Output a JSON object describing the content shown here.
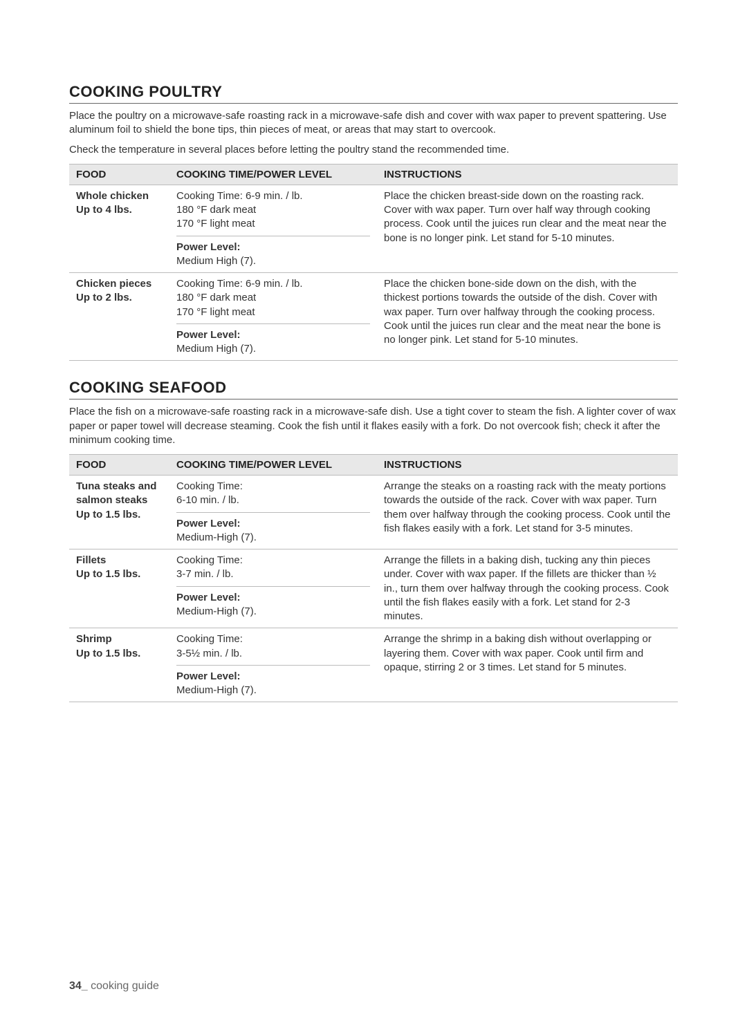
{
  "page": {
    "number": "34_",
    "label": "cooking guide"
  },
  "sections": [
    {
      "heading": "COOKING POULTRY",
      "intro_lines": [
        "Place the poultry on a microwave-safe roasting rack in a microwave-safe dish and cover with wax paper to prevent spattering. Use aluminum foil to shield the bone tips, thin pieces of meat, or areas that may start to overcook.",
        "Check the temperature in several places before letting the poultry stand the recommended time."
      ],
      "columns": [
        "FOOD",
        "COOKING TIME/POWER LEVEL",
        "INSTRUCTIONS"
      ],
      "rows": [
        {
          "food_lines": [
            "Whole chicken",
            "Up to 4 lbs."
          ],
          "time_block": "Cooking Time: 6-9 min. / lb.\n180 °F dark meat\n170 °F light meat",
          "power_label": "Power Level:",
          "power_value": "Medium High (7).",
          "instructions": "Place the chicken breast-side down on the roasting rack. Cover with wax paper. Turn over half way through cooking process. Cook until the juices run clear and the meat near the bone is no longer pink. Let stand for 5-10 minutes."
        },
        {
          "food_lines": [
            "Chicken pieces",
            "Up to 2 lbs."
          ],
          "time_block": "Cooking Time: 6-9 min. / lb.\n180 °F dark meat\n170 °F light meat",
          "power_label": "Power Level:",
          "power_value": "Medium High (7).",
          "instructions": "Place the chicken bone-side down on the dish, with the thickest portions towards the outside of the dish. Cover with wax paper. Turn over halfway through the cooking process. Cook until the juices run clear and the meat near the bone is no longer pink. Let stand for 5-10 minutes."
        }
      ]
    },
    {
      "heading": "COOKING SEAFOOD",
      "intro_lines": [
        "Place the fish on a microwave-safe roasting rack in a microwave-safe dish. Use a tight cover to steam the fish. A lighter cover of wax paper or paper towel will decrease steaming. Cook the fish until it flakes easily with a fork. Do not overcook fish; check it after the minimum cooking time."
      ],
      "columns": [
        "FOOD",
        "COOKING TIME/POWER LEVEL",
        "INSTRUCTIONS"
      ],
      "rows": [
        {
          "food_lines": [
            "Tuna steaks and",
            "salmon steaks",
            "Up to 1.5 lbs."
          ],
          "time_block": "Cooking Time:\n6-10 min. / lb.",
          "power_label": "Power Level:",
          "power_value": "Medium-High (7).",
          "instructions": "Arrange the steaks on a roasting rack with the meaty portions towards the outside of the rack. Cover with wax paper. Turn them over halfway through the cooking process. Cook until the fish flakes easily with a fork. Let stand for 3-5 minutes."
        },
        {
          "food_lines": [
            "Fillets",
            "Up to 1.5 lbs."
          ],
          "time_block": "Cooking Time:\n3-7 min. / lb.",
          "power_label": "Power Level:",
          "power_value": "Medium-High (7).",
          "instructions": "Arrange the fillets in a baking dish, tucking any thin pieces under. Cover with wax paper. If the fillets are thicker than ½ in., turn them over halfway through the cooking process. Cook until the fish flakes easily with a fork. Let stand for 2-3 minutes."
        },
        {
          "food_lines": [
            "Shrimp",
            "Up to 1.5 lbs."
          ],
          "time_block": "Cooking Time:\n3-5½ min. / lb.",
          "power_label": "Power Level:",
          "power_value": "Medium-High (7).",
          "instructions": "Arrange the shrimp in a baking dish without overlapping or layering them. Cover with wax paper. Cook until firm and opaque, stirring 2 or 3 times. Let stand for 5 minutes."
        }
      ]
    }
  ]
}
